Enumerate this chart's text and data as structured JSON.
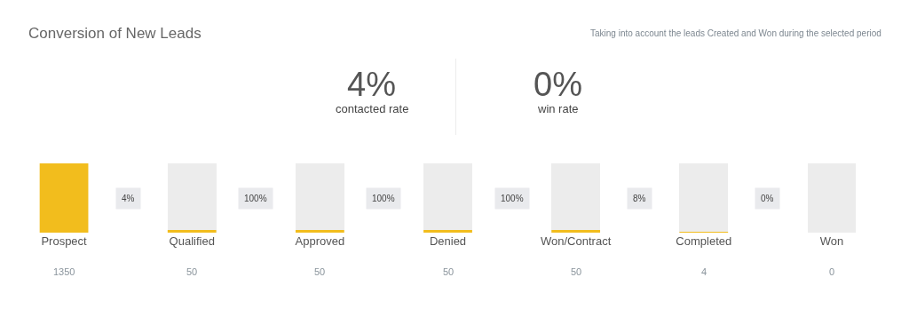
{
  "chart_data": {
    "type": "bar",
    "title": "Conversion of New Leads",
    "subtitle": "Taking into account the leads Created and Won during the selected period",
    "categories": [
      "Prospect",
      "Qualified",
      "Approved",
      "Denied",
      "Won/Contract",
      "Completed",
      "Won"
    ],
    "values": [
      1350,
      50,
      50,
      50,
      50,
      4,
      0
    ],
    "color": "#f2bd1d",
    "ylim": [
      0,
      1350
    ],
    "data_labels": true,
    "grid": false,
    "annotations": [
      "4%",
      "contacted rate",
      "0%",
      "win rate",
      "4%",
      "100%",
      "100%",
      "100%",
      "8%",
      "0%"
    ]
  }
}
